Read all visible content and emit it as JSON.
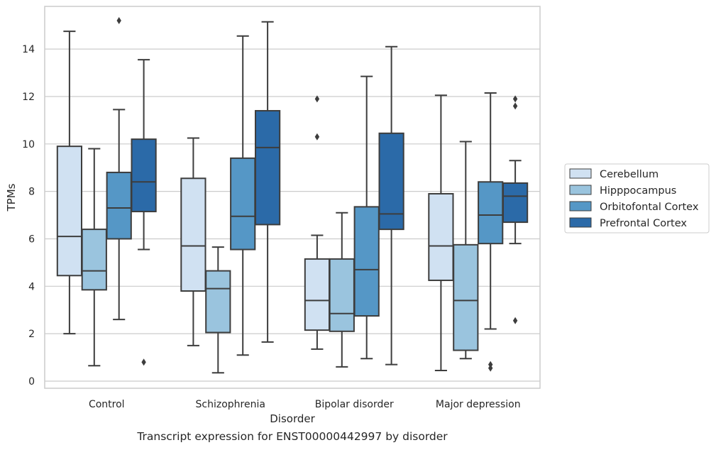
{
  "caption": "Transcript expression for ENST00000442997 by disorder",
  "chart_data": {
    "type": "box",
    "xlabel": "Disorder",
    "ylabel": "TPMs",
    "ylim": [
      -0.3,
      15.8
    ],
    "yticks": [
      0,
      2,
      4,
      6,
      8,
      10,
      12,
      14
    ],
    "grid": true,
    "legend_position": "right",
    "categories": [
      "Control",
      "Schizophrenia",
      "Bipolar disorder",
      "Major depression"
    ],
    "series": [
      {
        "name": "Cerebellum",
        "color": "#d0e1f2",
        "boxes": [
          {
            "whislo": 2.0,
            "q1": 4.45,
            "med": 6.1,
            "q3": 9.9,
            "whishi": 14.75,
            "fliers": []
          },
          {
            "whislo": 1.5,
            "q1": 3.8,
            "med": 5.7,
            "q3": 8.55,
            "whishi": 10.25,
            "fliers": []
          },
          {
            "whislo": 1.35,
            "q1": 2.15,
            "med": 3.4,
            "q3": 5.15,
            "whishi": 6.15,
            "fliers": [
              10.3,
              11.9
            ]
          },
          {
            "whislo": 0.45,
            "q1": 4.25,
            "med": 5.7,
            "q3": 7.9,
            "whishi": 12.05,
            "fliers": []
          }
        ]
      },
      {
        "name": "Hipppocampus",
        "color": "#9ac4de",
        "boxes": [
          {
            "whislo": 0.65,
            "q1": 3.85,
            "med": 4.65,
            "q3": 6.4,
            "whishi": 9.8,
            "fliers": []
          },
          {
            "whislo": 0.35,
            "q1": 2.05,
            "med": 3.9,
            "q3": 4.65,
            "whishi": 5.65,
            "fliers": []
          },
          {
            "whislo": 0.6,
            "q1": 2.1,
            "med": 2.85,
            "q3": 5.15,
            "whishi": 7.1,
            "fliers": []
          },
          {
            "whislo": 0.95,
            "q1": 1.3,
            "med": 3.4,
            "q3": 5.75,
            "whishi": 10.1,
            "fliers": []
          }
        ]
      },
      {
        "name": "Orbitofontal Cortex",
        "color": "#5597c6",
        "boxes": [
          {
            "whislo": 2.6,
            "q1": 6.0,
            "med": 7.3,
            "q3": 8.8,
            "whishi": 11.45,
            "fliers": [
              15.2
            ]
          },
          {
            "whislo": 1.1,
            "q1": 5.55,
            "med": 6.95,
            "q3": 9.4,
            "whishi": 14.55,
            "fliers": []
          },
          {
            "whislo": 0.95,
            "q1": 2.75,
            "med": 4.7,
            "q3": 7.35,
            "whishi": 12.85,
            "fliers": []
          },
          {
            "whislo": 2.2,
            "q1": 5.8,
            "med": 7.0,
            "q3": 8.4,
            "whishi": 12.15,
            "fliers": [
              0.55,
              0.7
            ]
          }
        ]
      },
      {
        "name": "Prefrontal Cortex",
        "color": "#2b6aa8",
        "boxes": [
          {
            "whislo": 5.55,
            "q1": 7.15,
            "med": 8.4,
            "q3": 10.2,
            "whishi": 13.55,
            "fliers": [
              0.8
            ]
          },
          {
            "whislo": 1.65,
            "q1": 6.6,
            "med": 9.85,
            "q3": 11.4,
            "whishi": 15.15,
            "fliers": []
          },
          {
            "whislo": 0.7,
            "q1": 6.4,
            "med": 7.05,
            "q3": 10.45,
            "whishi": 14.1,
            "fliers": []
          },
          {
            "whislo": 5.8,
            "q1": 6.7,
            "med": 7.8,
            "q3": 8.35,
            "whishi": 9.3,
            "fliers": [
              2.55,
              11.6,
              11.9
            ]
          }
        ]
      }
    ]
  }
}
